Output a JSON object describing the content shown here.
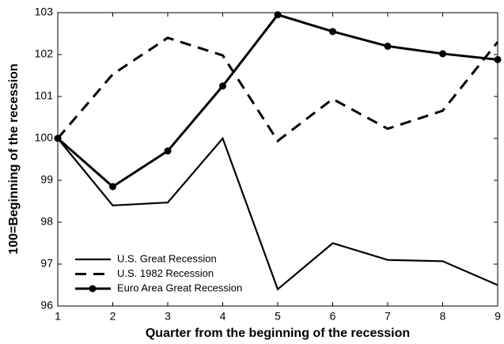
{
  "chart_data": {
    "type": "line",
    "x_label": "Quarter from the beginning of the recession",
    "y_label": "100=Beginning of the recession",
    "x": [
      1,
      2,
      3,
      4,
      5,
      6,
      7,
      8,
      9
    ],
    "xlim": [
      1,
      9
    ],
    "xticks": [
      1,
      2,
      3,
      4,
      5,
      6,
      7,
      8,
      9
    ],
    "ylim": [
      96,
      103
    ],
    "yticks": [
      96,
      97,
      98,
      99,
      100,
      101,
      102,
      103
    ],
    "grid": false,
    "legend": "lower-left",
    "series": [
      {
        "name": "U.S. Great Recession",
        "color": "#000000",
        "linestyle": "solid",
        "linewidth": 2.2,
        "values": [
          100,
          98.4,
          98.47,
          100,
          96.4,
          97.5,
          97.1,
          97.07,
          96.5
        ]
      },
      {
        "name": "U.S. 1982 Recession",
        "color": "#000000",
        "linestyle": "dashed",
        "linewidth": 3,
        "values": [
          100,
          101.53,
          102.4,
          101.98,
          99.94,
          100.94,
          100.23,
          100.66,
          102.3
        ]
      },
      {
        "name": "Euro Area Great Recession",
        "color": "#000000",
        "linestyle": "solid",
        "linewidth": 3,
        "marker": "circle",
        "values": [
          100,
          98.85,
          99.7,
          101.25,
          102.95,
          102.55,
          102.2,
          102.02,
          101.88
        ]
      }
    ]
  }
}
